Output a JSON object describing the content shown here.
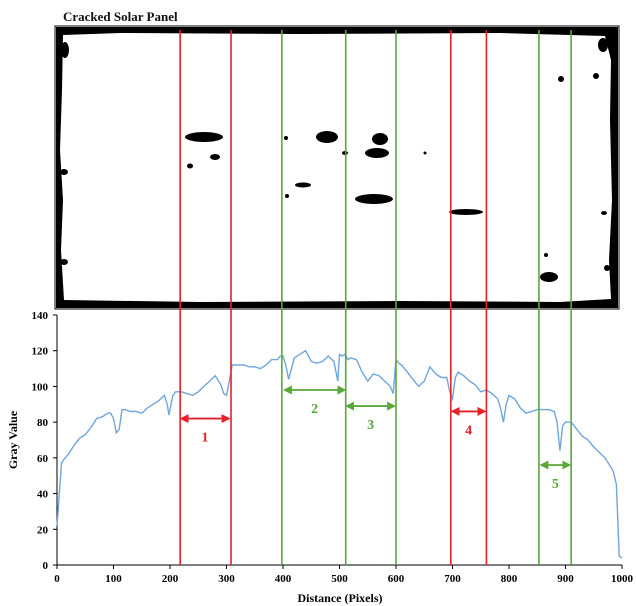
{
  "panel": {
    "title": "Cracked Solar Panel",
    "background_color": "#ffffff",
    "defect_color": "#000000"
  },
  "colors": {
    "crack_lines": "#e8202a",
    "defect_free_lines": "#5aa83a",
    "profile_line": "#6fa6dc",
    "axis": "#000000"
  },
  "chart_data": {
    "type": "line",
    "title": "",
    "xlabel": "Distance (Pixels)",
    "ylabel": "Gray Value",
    "xlim": [
      0,
      1000
    ],
    "ylim": [
      0,
      140
    ],
    "x_ticks": [
      0,
      100,
      200,
      300,
      400,
      500,
      600,
      700,
      800,
      900,
      1000
    ],
    "y_ticks": [
      0,
      20,
      40,
      60,
      80,
      100,
      120,
      140
    ],
    "grid": false,
    "series": [
      {
        "color": "#6fa6dc",
        "x": [
          0,
          3,
          8,
          12,
          20,
          30,
          40,
          50,
          60,
          70,
          80,
          90,
          95,
          100,
          105,
          110,
          115,
          120,
          130,
          140,
          150,
          160,
          170,
          180,
          190,
          195,
          198,
          205,
          210,
          220,
          230,
          240,
          250,
          260,
          270,
          280,
          290,
          295,
          300,
          305,
          310,
          320,
          330,
          340,
          350,
          360,
          370,
          380,
          390,
          395,
          400,
          405,
          410,
          420,
          430,
          440,
          450,
          460,
          470,
          480,
          490,
          497,
          500,
          505,
          510,
          515,
          520,
          530,
          540,
          550,
          560,
          570,
          580,
          590,
          595,
          600,
          605,
          610,
          620,
          630,
          640,
          650,
          660,
          670,
          680,
          690,
          695,
          700,
          705,
          710,
          720,
          730,
          740,
          750,
          760,
          770,
          780,
          785,
          790,
          795,
          800,
          805,
          810,
          820,
          830,
          840,
          850,
          860,
          870,
          880,
          885,
          890,
          895,
          900,
          910,
          920,
          930,
          940,
          950,
          960,
          970,
          980,
          985,
          990,
          995,
          1000
        ],
        "values": [
          22,
          35,
          57,
          59,
          62,
          67,
          71,
          73,
          77,
          82,
          83,
          85,
          85,
          82,
          74,
          76,
          87,
          87,
          86,
          86,
          85,
          88,
          90,
          92,
          95,
          90,
          84,
          95,
          97,
          97,
          96,
          95,
          97,
          100,
          103,
          106,
          101,
          96,
          95,
          103,
          112,
          112,
          112,
          111,
          111,
          110,
          112,
          115,
          115,
          117,
          117,
          112,
          104,
          116,
          118,
          120,
          114,
          113,
          114,
          117,
          114,
          103,
          118,
          117,
          118,
          115,
          116,
          115,
          108,
          103,
          107,
          106,
          103,
          100,
          96,
          115,
          113,
          112,
          108,
          104,
          100,
          103,
          111,
          107,
          105,
          105,
          97,
          93,
          105,
          108,
          106,
          103,
          101,
          97,
          98,
          96,
          93,
          88,
          80,
          90,
          95,
          94,
          93,
          88,
          85,
          86,
          87,
          87,
          87,
          86,
          80,
          64,
          78,
          80,
          80,
          76,
          72,
          70,
          66,
          63,
          60,
          55,
          52,
          45,
          5,
          4
        ]
      }
    ],
    "crack_lines_x": [
      218,
      308,
      697,
      760
    ],
    "defect_free_lines_x": [
      398,
      511,
      600,
      853,
      910
    ],
    "regions": [
      {
        "label": "1",
        "type": "crack",
        "x_start": 220,
        "x_end": 304,
        "y": 82
      },
      {
        "label": "2",
        "type": "defect-free",
        "x_start": 403,
        "x_end": 509,
        "y": 98
      },
      {
        "label": "3",
        "type": "defect-free",
        "x_start": 513,
        "x_end": 597,
        "y": 89
      },
      {
        "label": "4",
        "type": "crack",
        "x_start": 700,
        "x_end": 757,
        "y": 86
      },
      {
        "label": "5",
        "type": "defect-free",
        "x_start": 857,
        "x_end": 907,
        "y": 56
      }
    ],
    "region_labels": [
      "1",
      "2",
      "3",
      "4",
      "5"
    ]
  }
}
